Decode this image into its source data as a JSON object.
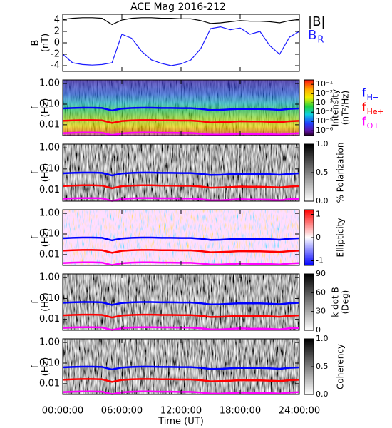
{
  "chart_data": [
    {
      "type": "line",
      "title": "ACE Mag 2016-212",
      "ylabel": [
        "B",
        "(nT)"
      ],
      "x": [
        0,
        1,
        2,
        3,
        4,
        5,
        6,
        7,
        8,
        9,
        10,
        11,
        12,
        13,
        14,
        15,
        16,
        17,
        18,
        19,
        20,
        21,
        22,
        23,
        24
      ],
      "ylim": [
        -5,
        5
      ],
      "yticks": [
        -4,
        -2,
        0,
        2,
        4
      ],
      "series": [
        {
          "name": "|B|",
          "color": "#000000",
          "values": [
            4.1,
            4.3,
            4.4,
            4.4,
            4.3,
            3.2,
            4.0,
            4.3,
            4.4,
            4.4,
            4.3,
            4.3,
            4.2,
            4.2,
            3.9,
            3.4,
            3.5,
            3.7,
            3.9,
            3.8,
            3.8,
            3.7,
            3.5,
            3.9,
            4.1
          ]
        },
        {
          "name": "B",
          "name_subscript": "R",
          "color": "#1a1aff",
          "values": [
            -2.0,
            -3.5,
            -3.8,
            -3.9,
            -3.8,
            -3.5,
            1.5,
            0.8,
            -1.5,
            -3.0,
            -3.6,
            -4.0,
            -3.7,
            -3.0,
            -1.0,
            2.5,
            2.8,
            2.3,
            2.6,
            1.5,
            2.0,
            -0.5,
            -2.0,
            1.0,
            2.0
          ]
        }
      ]
    },
    {
      "type": "spectrogram",
      "ylabel": [
        "f",
        "(Hz)"
      ],
      "log_y": true,
      "ylim": [
        0.003,
        1.5
      ],
      "yticks": [
        {
          "value": 1,
          "label": "1.00"
        },
        {
          "value": 0.1,
          "label": "0.10"
        },
        {
          "value": 0.01,
          "label": "0.01"
        }
      ],
      "colormap": "rainbow",
      "colorbar_label": [
        "Intensity",
        "(nT²/Hz)"
      ],
      "colorbar_log": true,
      "clim": [
        3e-07,
        0.3
      ],
      "colorbar_ticks": [
        {
          "value": 0.1,
          "label": "10⁻¹"
        },
        {
          "value": 0.01,
          "label": "10⁻²"
        },
        {
          "value": 0.001,
          "label": "10⁻³"
        },
        {
          "value": 0.0001,
          "label": "10⁻⁴"
        },
        {
          "value": 1e-05,
          "label": "10⁻⁵"
        },
        {
          "value": 1e-06,
          "label": "10⁻⁶"
        }
      ],
      "x": [
        0,
        1,
        2,
        3,
        4,
        5,
        6,
        7,
        8,
        9,
        10,
        11,
        12,
        13,
        14,
        15,
        16,
        17,
        18,
        19,
        20,
        21,
        22,
        23,
        24
      ],
      "series": [
        {
          "name": "f",
          "name_subscript": "H+",
          "color": "#0000ff",
          "values": [
            0.062,
            0.065,
            0.067,
            0.067,
            0.065,
            0.049,
            0.061,
            0.065,
            0.067,
            0.067,
            0.065,
            0.065,
            0.064,
            0.064,
            0.059,
            0.052,
            0.053,
            0.056,
            0.059,
            0.058,
            0.058,
            0.056,
            0.053,
            0.059,
            0.062
          ]
        },
        {
          "name": "f",
          "name_subscript": "He+",
          "color": "#ff0000",
          "values": [
            0.0155,
            0.0163,
            0.0168,
            0.0168,
            0.0163,
            0.0123,
            0.0153,
            0.0163,
            0.0168,
            0.0168,
            0.0163,
            0.0163,
            0.016,
            0.016,
            0.0148,
            0.013,
            0.0133,
            0.014,
            0.0148,
            0.0145,
            0.0145,
            0.014,
            0.0133,
            0.0148,
            0.0155
          ]
        },
        {
          "name": "f",
          "name_subscript": "O+",
          "color": "#ff00ff",
          "values": [
            0.0039,
            0.0041,
            0.0042,
            0.0042,
            0.0041,
            0.0031,
            0.0038,
            0.0041,
            0.0042,
            0.0042,
            0.0041,
            0.0041,
            0.004,
            0.004,
            0.0037,
            0.0033,
            0.0033,
            0.0035,
            0.0037,
            0.0036,
            0.0036,
            0.0035,
            0.0033,
            0.0037,
            0.0039
          ]
        }
      ]
    },
    {
      "type": "spectrogram",
      "ylabel": [
        "f",
        "(Hz)"
      ],
      "log_y": true,
      "ylim": [
        0.003,
        1.5
      ],
      "yticks": [
        {
          "value": 1,
          "label": "1.00"
        },
        {
          "value": 0.1,
          "label": "0.10"
        },
        {
          "value": 0.01,
          "label": "0.01"
        }
      ],
      "colormap": "gray",
      "colorbar_label": [
        "% Polarization"
      ],
      "clim": [
        0,
        1
      ],
      "colorbar_ticks": [
        {
          "value": 1,
          "label": "1.0"
        },
        {
          "value": 0.5,
          "label": "0.5"
        },
        {
          "value": 0,
          "label": "0.0"
        }
      ]
    },
    {
      "type": "spectrogram",
      "ylabel": [
        "f",
        "(Hz)"
      ],
      "log_y": true,
      "ylim": [
        0.003,
        1.5
      ],
      "yticks": [
        {
          "value": 1,
          "label": "1.00"
        },
        {
          "value": 0.1,
          "label": "0.10"
        },
        {
          "value": 0.01,
          "label": "0.01"
        }
      ],
      "colormap": "bwr",
      "colorbar_label": [
        "Ellipticity"
      ],
      "clim": [
        -1.2,
        1.2
      ],
      "colorbar_ticks": [
        1,
        0,
        -1
      ]
    },
    {
      "type": "spectrogram",
      "ylabel": [
        "f",
        "(Hz)"
      ],
      "log_y": true,
      "ylim": [
        0.003,
        1.5
      ],
      "yticks": [
        {
          "value": 1,
          "label": "1.00"
        },
        {
          "value": 0.1,
          "label": "0.10"
        },
        {
          "value": 0.01,
          "label": "0.01"
        }
      ],
      "colormap": "gray",
      "colorbar_label": [
        "k dot B",
        "(Deg)"
      ],
      "clim": [
        0,
        90
      ],
      "colorbar_ticks": [
        90,
        60,
        30,
        0
      ]
    },
    {
      "type": "spectrogram",
      "ylabel": [
        "f",
        "(Hz)"
      ],
      "log_y": true,
      "ylim": [
        0.003,
        1.5
      ],
      "yticks": [
        {
          "value": 1,
          "label": "1.00"
        },
        {
          "value": 0.1,
          "label": "0.10"
        },
        {
          "value": 0.01,
          "label": "0.01"
        }
      ],
      "colormap": "gray",
      "colorbar_label": [
        "Coherency"
      ],
      "clim": [
        0,
        1
      ],
      "colorbar_ticks": [
        {
          "value": 1,
          "label": "1.0"
        },
        {
          "value": 0.5,
          "label": "0.5"
        },
        {
          "value": 0,
          "label": "0.0"
        }
      ],
      "xlim": [
        0,
        24
      ],
      "xticks": [
        {
          "value": 0,
          "label": "00:00:00"
        },
        {
          "value": 6,
          "label": "06:00:00"
        },
        {
          "value": 12,
          "label": "12:00:00"
        },
        {
          "value": 18,
          "label": "18:00:00"
        },
        {
          "value": 24,
          "label": "24:00:00"
        }
      ],
      "xlabel": "Time (UT)"
    }
  ]
}
